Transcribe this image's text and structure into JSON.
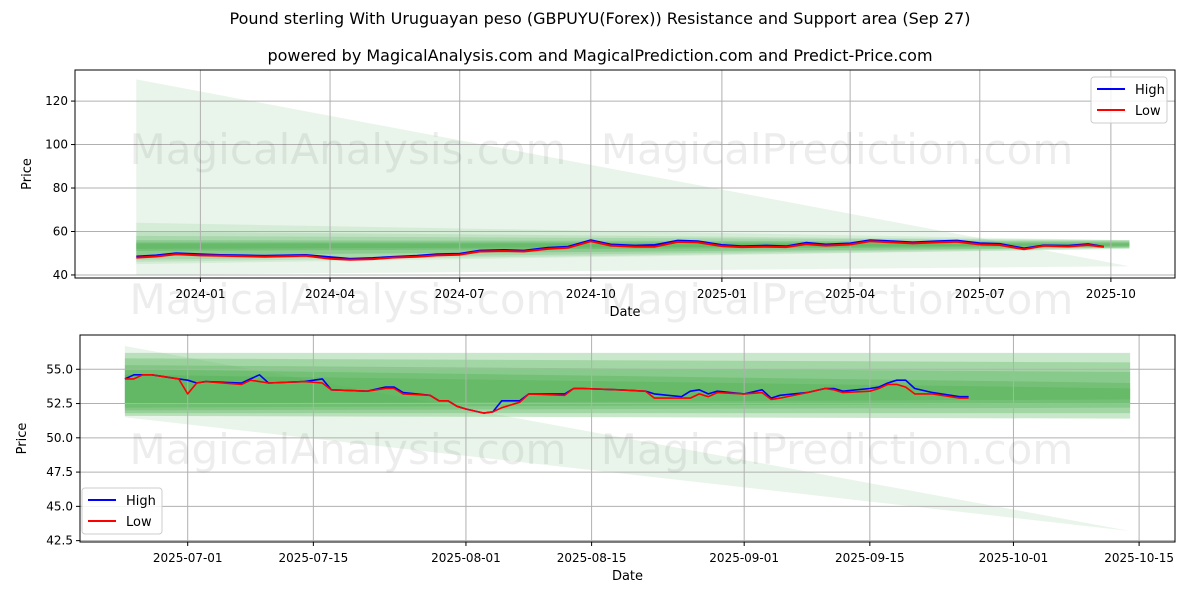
{
  "title": "Pound sterling With Uruguayan peso (GBPUYU(Forex)) Resistance and Support area (Sep 27)",
  "subtitle": "powered by MagicalAnalysis.com and MagicalPrediction.com and Predict-Price.com",
  "watermarks": [
    "MagicalAnalysis.com",
    "MagicalPrediction.com"
  ],
  "colors": {
    "high": "#0000ff",
    "low": "#ff0000",
    "band": "#4caf50",
    "grid": "#b0b0b0"
  },
  "chart_data": [
    {
      "type": "line",
      "xlabel": "Date",
      "ylabel": "Price",
      "xlim": [
        "2023-10-05",
        "2025-11-15"
      ],
      "ylim": [
        38.6,
        134.3
      ],
      "yticks": [
        40,
        60,
        80,
        100,
        120
      ],
      "xticks": [
        "2024-01",
        "2024-04",
        "2024-07",
        "2024-10",
        "2025-01",
        "2025-04",
        "2025-07",
        "2025-10"
      ],
      "xtick_dates": [
        "2024-01-01",
        "2024-04-01",
        "2024-07-01",
        "2024-10-01",
        "2025-01-01",
        "2025-04-01",
        "2025-07-01",
        "2025-10-01"
      ],
      "legend": {
        "placement": "top-right",
        "entries": [
          "High",
          "Low"
        ]
      },
      "grid": true,
      "band_range": [
        "2023-11-17",
        "2025-10-14"
      ],
      "bands": [
        {
          "start": [
            40,
            130
          ],
          "end": [
            44,
            44
          ],
          "opacity": 0.12
        },
        {
          "start": [
            45,
            64
          ],
          "end": [
            52,
            56
          ],
          "opacity": 0.12
        },
        {
          "start": [
            46,
            60
          ],
          "end": [
            52,
            56
          ],
          "opacity": 0.15
        },
        {
          "start": [
            47,
            58
          ],
          "end": [
            52.5,
            56
          ],
          "opacity": 0.2
        },
        {
          "start": [
            49,
            56
          ],
          "end": [
            52.5,
            55.5
          ],
          "opacity": 0.3
        },
        {
          "start": [
            51,
            55
          ],
          "end": [
            53,
            55
          ],
          "opacity": 0.35
        },
        {
          "start": [
            52,
            54.5
          ],
          "end": [
            53.5,
            54.5
          ],
          "opacity": 0.35
        }
      ],
      "series": [
        {
          "name": "High",
          "x": [
            "2023-11-17",
            "2023-12-01",
            "2023-12-15",
            "2024-01-01",
            "2024-01-15",
            "2024-02-01",
            "2024-02-15",
            "2024-03-01",
            "2024-03-15",
            "2024-04-01",
            "2024-04-15",
            "2024-05-01",
            "2024-05-15",
            "2024-06-01",
            "2024-06-15",
            "2024-07-01",
            "2024-07-15",
            "2024-08-01",
            "2024-08-15",
            "2024-09-01",
            "2024-09-15",
            "2024-10-01",
            "2024-10-15",
            "2024-11-01",
            "2024-11-15",
            "2024-12-01",
            "2024-12-15",
            "2025-01-01",
            "2025-01-15",
            "2025-02-01",
            "2025-02-15",
            "2025-03-01",
            "2025-03-15",
            "2025-04-01",
            "2025-04-15",
            "2025-05-01",
            "2025-05-15",
            "2025-06-01",
            "2025-06-15",
            "2025-07-01",
            "2025-07-15",
            "2025-08-01",
            "2025-08-15",
            "2025-09-01",
            "2025-09-15",
            "2025-09-26"
          ],
          "y": [
            48.5,
            49,
            50,
            49.5,
            49.2,
            49,
            48.8,
            49,
            49.2,
            48.2,
            47.5,
            47.8,
            48.3,
            48.8,
            49.5,
            49.8,
            51.2,
            51.5,
            51.2,
            52.5,
            53,
            56,
            54,
            53.5,
            53.8,
            55.8,
            55.5,
            53.8,
            53.2,
            53.5,
            53.2,
            54.8,
            54,
            54.5,
            56,
            55.5,
            55,
            55.5,
            55.8,
            54.6,
            54.3,
            52.2,
            53.6,
            53.4,
            54.2,
            53
          ]
        },
        {
          "name": "Low",
          "x": [
            "2023-11-17",
            "2023-12-01",
            "2023-12-15",
            "2024-01-01",
            "2024-01-15",
            "2024-02-01",
            "2024-02-15",
            "2024-03-01",
            "2024-03-15",
            "2024-04-01",
            "2024-04-15",
            "2024-05-01",
            "2024-05-15",
            "2024-06-01",
            "2024-06-15",
            "2024-07-01",
            "2024-07-15",
            "2024-08-01",
            "2024-08-15",
            "2024-09-01",
            "2024-09-15",
            "2024-10-01",
            "2024-10-15",
            "2024-11-01",
            "2024-11-15",
            "2024-12-01",
            "2024-12-15",
            "2025-01-01",
            "2025-01-15",
            "2025-02-01",
            "2025-02-15",
            "2025-03-01",
            "2025-03-15",
            "2025-04-01",
            "2025-04-15",
            "2025-05-01",
            "2025-05-15",
            "2025-06-01",
            "2025-06-15",
            "2025-07-01",
            "2025-07-15",
            "2025-08-01",
            "2025-08-15",
            "2025-09-01",
            "2025-09-15",
            "2025-09-26"
          ],
          "y": [
            48,
            48.5,
            49.5,
            49,
            48.8,
            48.6,
            48.4,
            48.6,
            48.8,
            47.5,
            47,
            47.3,
            48,
            48.4,
            49,
            49.3,
            50.8,
            51,
            50.8,
            52,
            52.5,
            55.5,
            53.5,
            53,
            53,
            55.2,
            55,
            53.3,
            52.8,
            53,
            52.8,
            54.2,
            53.5,
            54,
            55.5,
            55,
            54.5,
            55,
            55.3,
            54,
            53.8,
            51.8,
            53.4,
            53.1,
            53.8,
            52.9
          ]
        }
      ]
    },
    {
      "type": "line",
      "xlabel": "Date",
      "ylabel": "Price",
      "xlim": [
        "2025-06-19",
        "2025-10-19"
      ],
      "ylim": [
        42.4,
        57.5
      ],
      "yticks": [
        42.5,
        45.0,
        47.5,
        50.0,
        52.5,
        55.0
      ],
      "xticks": [
        "2025-07-01",
        "2025-07-15",
        "2025-08-01",
        "2025-08-15",
        "2025-09-01",
        "2025-09-15",
        "2025-10-01",
        "2025-10-15"
      ],
      "legend": {
        "placement": "bottom-left",
        "entries": [
          "High",
          "Low"
        ]
      },
      "grid": true,
      "band_range": [
        "2025-06-24",
        "2025-10-14"
      ],
      "bands": [
        {
          "start": [
            51.5,
            56.7
          ],
          "end": [
            43.2,
            43.2
          ],
          "opacity": 0.12
        },
        {
          "start": [
            51.6,
            56.2
          ],
          "end": [
            51.4,
            56.2
          ],
          "opacity": 0.3
        },
        {
          "start": [
            51.8,
            55.8
          ],
          "end": [
            51.8,
            55.5
          ],
          "opacity": 0.3
        },
        {
          "start": [
            52.0,
            55.3
          ],
          "end": [
            52.2,
            54.8
          ],
          "opacity": 0.3
        },
        {
          "start": [
            52.2,
            55.0
          ],
          "end": [
            52.5,
            54.0
          ],
          "opacity": 0.35
        },
        {
          "start": [
            52.5,
            54.6
          ],
          "end": [
            52.8,
            53.6
          ],
          "opacity": 0.35
        }
      ],
      "series": [
        {
          "name": "High",
          "x": [
            "2025-06-24",
            "2025-06-25",
            "2025-06-26",
            "2025-06-27",
            "2025-06-30",
            "2025-07-01",
            "2025-07-02",
            "2025-07-03",
            "2025-07-07",
            "2025-07-08",
            "2025-07-09",
            "2025-07-10",
            "2025-07-14",
            "2025-07-16",
            "2025-07-17",
            "2025-07-21",
            "2025-07-23",
            "2025-07-24",
            "2025-07-25",
            "2025-07-28",
            "2025-07-29",
            "2025-07-30",
            "2025-07-31",
            "2025-08-01",
            "2025-08-03",
            "2025-08-04",
            "2025-08-05",
            "2025-08-07",
            "2025-08-08",
            "2025-08-12",
            "2025-08-13",
            "2025-08-14",
            "2025-08-18",
            "2025-08-21",
            "2025-08-22",
            "2025-08-25",
            "2025-08-26",
            "2025-08-27",
            "2025-08-28",
            "2025-08-29",
            "2025-09-01",
            "2025-09-03",
            "2025-09-04",
            "2025-09-05",
            "2025-09-08",
            "2025-09-10",
            "2025-09-11",
            "2025-09-12",
            "2025-09-15",
            "2025-09-16",
            "2025-09-17",
            "2025-09-18",
            "2025-09-19",
            "2025-09-20",
            "2025-09-22",
            "2025-09-23",
            "2025-09-25",
            "2025-09-26"
          ],
          "y": [
            54.3,
            54.6,
            54.6,
            54.6,
            54.3,
            54.2,
            54.0,
            54.1,
            54.0,
            54.3,
            54.6,
            54.0,
            54.1,
            54.3,
            53.5,
            53.4,
            53.7,
            53.7,
            53.3,
            53.1,
            52.7,
            52.7,
            52.3,
            52.1,
            51.8,
            51.9,
            52.7,
            52.7,
            53.2,
            53.2,
            53.6,
            53.6,
            53.5,
            53.4,
            53.2,
            53.0,
            53.4,
            53.5,
            53.2,
            53.4,
            53.2,
            53.5,
            52.9,
            53.1,
            53.3,
            53.6,
            53.6,
            53.4,
            53.6,
            53.7,
            54.0,
            54.2,
            54.2,
            53.6,
            53.3,
            53.2,
            53.0,
            53.0
          ]
        },
        {
          "name": "Low",
          "x": [
            "2025-06-24",
            "2025-06-25",
            "2025-06-26",
            "2025-06-27",
            "2025-06-30",
            "2025-07-01",
            "2025-07-02",
            "2025-07-03",
            "2025-07-07",
            "2025-07-08",
            "2025-07-09",
            "2025-07-10",
            "2025-07-14",
            "2025-07-16",
            "2025-07-17",
            "2025-07-21",
            "2025-07-23",
            "2025-07-24",
            "2025-07-25",
            "2025-07-28",
            "2025-07-29",
            "2025-07-30",
            "2025-07-31",
            "2025-08-01",
            "2025-08-03",
            "2025-08-04",
            "2025-08-05",
            "2025-08-07",
            "2025-08-08",
            "2025-08-12",
            "2025-08-13",
            "2025-08-14",
            "2025-08-18",
            "2025-08-21",
            "2025-08-22",
            "2025-08-25",
            "2025-08-26",
            "2025-08-27",
            "2025-08-28",
            "2025-08-29",
            "2025-09-01",
            "2025-09-03",
            "2025-09-04",
            "2025-09-05",
            "2025-09-08",
            "2025-09-10",
            "2025-09-11",
            "2025-09-12",
            "2025-09-15",
            "2025-09-16",
            "2025-09-17",
            "2025-09-18",
            "2025-09-19",
            "2025-09-20",
            "2025-09-22",
            "2025-09-23",
            "2025-09-25",
            "2025-09-26"
          ],
          "y": [
            54.3,
            54.3,
            54.6,
            54.6,
            54.3,
            53.2,
            54.0,
            54.1,
            53.9,
            54.2,
            54.1,
            54.0,
            54.1,
            54.0,
            53.5,
            53.4,
            53.6,
            53.6,
            53.2,
            53.1,
            52.7,
            52.7,
            52.3,
            52.1,
            51.8,
            51.9,
            52.2,
            52.6,
            53.2,
            53.1,
            53.6,
            53.6,
            53.5,
            53.4,
            52.9,
            52.9,
            52.9,
            53.2,
            53.0,
            53.3,
            53.2,
            53.3,
            52.8,
            52.9,
            53.3,
            53.6,
            53.5,
            53.3,
            53.4,
            53.6,
            53.9,
            53.9,
            53.7,
            53.2,
            53.2,
            53.1,
            52.9,
            52.9
          ]
        }
      ]
    }
  ]
}
